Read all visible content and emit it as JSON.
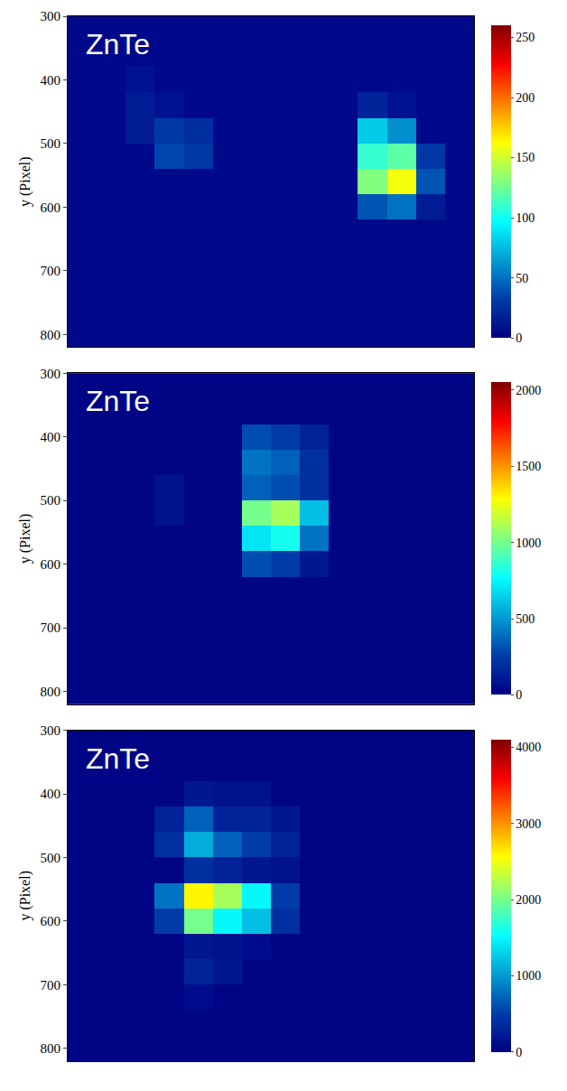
{
  "chart_data": [
    {
      "type": "heatmap",
      "label": "ZnTe",
      "y_label": "y (Pixel)",
      "color": "Jet",
      "tick_labels": "y",
      "xlim": [
        330,
        890
      ],
      "ylim": [
        820,
        300
      ],
      "yticks": [
        300,
        400,
        500,
        600,
        700,
        800
      ],
      "x": [
        350,
        390,
        430,
        470,
        510,
        550,
        590,
        630,
        670,
        710,
        750,
        790,
        830,
        870
      ],
      "y": [
        320,
        360,
        400,
        440,
        480,
        520,
        560,
        600,
        640,
        680,
        720,
        760,
        800
      ],
      "colorbar_range": [
        0,
        260
      ],
      "colorbar_ticks": [
        0,
        50,
        100,
        150,
        200,
        250
      ],
      "z": [
        [
          5,
          5,
          5,
          5,
          5,
          5,
          5,
          5,
          5,
          5,
          5,
          5,
          5,
          5
        ],
        [
          5,
          5,
          5,
          5,
          5,
          5,
          5,
          5,
          5,
          5,
          5,
          5,
          5,
          5
        ],
        [
          5,
          5,
          10,
          5,
          5,
          5,
          5,
          5,
          5,
          5,
          5,
          5,
          5,
          5
        ],
        [
          5,
          5,
          15,
          10,
          5,
          5,
          5,
          5,
          5,
          5,
          20,
          10,
          5,
          5
        ],
        [
          5,
          5,
          15,
          30,
          25,
          5,
          5,
          5,
          5,
          5,
          80,
          60,
          5,
          5
        ],
        [
          5,
          5,
          5,
          35,
          30,
          5,
          5,
          5,
          5,
          5,
          110,
          120,
          30,
          5
        ],
        [
          5,
          5,
          5,
          5,
          5,
          5,
          5,
          5,
          5,
          5,
          130,
          160,
          40,
          5
        ],
        [
          5,
          5,
          5,
          5,
          5,
          5,
          5,
          5,
          5,
          5,
          40,
          50,
          15,
          5
        ],
        [
          5,
          5,
          5,
          5,
          5,
          5,
          5,
          5,
          5,
          5,
          5,
          5,
          5,
          5
        ],
        [
          5,
          5,
          5,
          5,
          5,
          5,
          5,
          5,
          5,
          5,
          5,
          5,
          5,
          5
        ],
        [
          5,
          5,
          5,
          5,
          5,
          5,
          5,
          5,
          5,
          5,
          5,
          5,
          5,
          5
        ],
        [
          5,
          5,
          5,
          5,
          5,
          5,
          5,
          5,
          5,
          5,
          5,
          5,
          5,
          5
        ],
        [
          5,
          5,
          5,
          5,
          5,
          5,
          5,
          5,
          5,
          5,
          5,
          5,
          5,
          5
        ]
      ]
    },
    {
      "type": "heatmap",
      "label": "ZnTe",
      "y_label": "y (Pixel)",
      "color": "Jet",
      "tick_labels": "y",
      "xlim": [
        330,
        890
      ],
      "ylim": [
        820,
        300
      ],
      "yticks": [
        300,
        400,
        500,
        600,
        700,
        800
      ],
      "x": [
        350,
        390,
        430,
        470,
        510,
        550,
        590,
        630,
        670,
        710,
        750,
        790,
        830,
        870
      ],
      "y": [
        320,
        360,
        400,
        440,
        480,
        520,
        560,
        600,
        640,
        680,
        720,
        760,
        800
      ],
      "colorbar_range": [
        0,
        2050
      ],
      "colorbar_ticks": [
        0,
        500,
        1000,
        1500,
        2000
      ],
      "z": [
        [
          20,
          20,
          20,
          20,
          20,
          20,
          20,
          20,
          20,
          20,
          20,
          20,
          20,
          20
        ],
        [
          20,
          20,
          20,
          20,
          20,
          20,
          20,
          20,
          20,
          20,
          20,
          20,
          20,
          20
        ],
        [
          20,
          20,
          20,
          20,
          20,
          20,
          300,
          250,
          150,
          20,
          20,
          20,
          20,
          20
        ],
        [
          20,
          20,
          20,
          20,
          20,
          20,
          400,
          350,
          200,
          20,
          20,
          20,
          20,
          20
        ],
        [
          20,
          20,
          20,
          80,
          20,
          20,
          350,
          300,
          200,
          20,
          20,
          20,
          20,
          20
        ],
        [
          20,
          20,
          20,
          80,
          20,
          20,
          1000,
          1100,
          600,
          20,
          20,
          20,
          20,
          20
        ],
        [
          20,
          20,
          20,
          20,
          20,
          20,
          700,
          800,
          400,
          20,
          20,
          20,
          20,
          20
        ],
        [
          20,
          20,
          20,
          20,
          20,
          20,
          300,
          250,
          100,
          20,
          20,
          20,
          20,
          20
        ],
        [
          20,
          20,
          20,
          20,
          20,
          20,
          20,
          20,
          20,
          20,
          20,
          20,
          20,
          20
        ],
        [
          20,
          20,
          20,
          20,
          20,
          20,
          20,
          20,
          20,
          20,
          20,
          20,
          20,
          20
        ],
        [
          20,
          20,
          20,
          20,
          20,
          20,
          20,
          20,
          20,
          20,
          20,
          20,
          20,
          20
        ],
        [
          20,
          20,
          20,
          20,
          20,
          20,
          20,
          20,
          20,
          20,
          20,
          20,
          20,
          20
        ],
        [
          20,
          20,
          20,
          20,
          20,
          20,
          20,
          20,
          20,
          20,
          20,
          20,
          20,
          20
        ]
      ]
    },
    {
      "type": "heatmap",
      "label": "ZnTe",
      "y_label": "y (Pixel)",
      "color": "Jet",
      "tick_labels": "y",
      "xlim": [
        330,
        890
      ],
      "ylim": [
        820,
        300
      ],
      "yticks": [
        300,
        400,
        500,
        600,
        700,
        800
      ],
      "x": [
        350,
        390,
        430,
        470,
        510,
        550,
        590,
        630,
        670,
        710,
        750,
        790,
        830,
        870
      ],
      "y": [
        320,
        360,
        400,
        440,
        480,
        520,
        560,
        600,
        640,
        680,
        720,
        760,
        800
      ],
      "colorbar_range": [
        0,
        4100
      ],
      "colorbar_ticks": [
        0,
        1000,
        2000,
        3000,
        4000
      ],
      "z": [
        [
          40,
          40,
          40,
          40,
          40,
          40,
          40,
          40,
          40,
          40,
          40,
          40,
          40,
          40
        ],
        [
          40,
          40,
          40,
          40,
          40,
          40,
          40,
          40,
          40,
          40,
          40,
          40,
          40,
          40
        ],
        [
          40,
          40,
          40,
          40,
          200,
          150,
          150,
          40,
          40,
          40,
          40,
          40,
          40,
          40
        ],
        [
          40,
          40,
          40,
          300,
          700,
          300,
          300,
          200,
          40,
          40,
          40,
          40,
          40,
          40
        ],
        [
          40,
          40,
          40,
          400,
          1100,
          700,
          500,
          300,
          40,
          40,
          40,
          40,
          40,
          40
        ],
        [
          40,
          40,
          40,
          40,
          400,
          300,
          200,
          150,
          40,
          40,
          40,
          40,
          40,
          40
        ],
        [
          40,
          40,
          40,
          800,
          2600,
          2200,
          1500,
          500,
          40,
          40,
          40,
          40,
          40,
          40
        ],
        [
          40,
          40,
          40,
          500,
          2000,
          1500,
          1200,
          400,
          40,
          40,
          40,
          40,
          40,
          40
        ],
        [
          40,
          40,
          40,
          40,
          200,
          150,
          100,
          40,
          40,
          40,
          40,
          40,
          40,
          40
        ],
        [
          40,
          40,
          40,
          40,
          300,
          200,
          40,
          40,
          40,
          40,
          40,
          40,
          40,
          40
        ],
        [
          40,
          40,
          40,
          40,
          100,
          40,
          40,
          40,
          40,
          40,
          40,
          40,
          40,
          40
        ],
        [
          40,
          40,
          40,
          40,
          40,
          40,
          40,
          40,
          40,
          40,
          40,
          40,
          40,
          40
        ],
        [
          40,
          40,
          40,
          40,
          40,
          40,
          40,
          40,
          40,
          40,
          40,
          40,
          40,
          40
        ]
      ]
    }
  ]
}
